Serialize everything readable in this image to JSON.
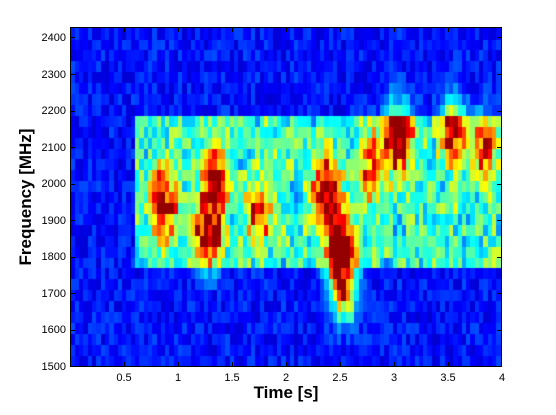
{
  "chart_data": {
    "type": "heatmap",
    "title": "",
    "xlabel": "Time [s]",
    "ylabel": "Frequency [MHz]",
    "xlim": [
      0,
      4
    ],
    "ylim": [
      1500,
      2430
    ],
    "x_ticks": [
      {
        "value": 0.5,
        "label": "0.5"
      },
      {
        "value": 1,
        "label": "1"
      },
      {
        "value": 1.5,
        "label": "1.5"
      },
      {
        "value": 2,
        "label": "2"
      },
      {
        "value": 2.5,
        "label": "2.5"
      },
      {
        "value": 3,
        "label": "3"
      },
      {
        "value": 3.5,
        "label": "3.5"
      },
      {
        "value": 4,
        "label": "4"
      }
    ],
    "y_ticks": [
      {
        "value": 1500,
        "label": "1500"
      },
      {
        "value": 1600,
        "label": "1600"
      },
      {
        "value": 1700,
        "label": "1700"
      },
      {
        "value": 1800,
        "label": "1800"
      },
      {
        "value": 1900,
        "label": "1900"
      },
      {
        "value": 2000,
        "label": "2000"
      },
      {
        "value": 2100,
        "label": "2100"
      },
      {
        "value": 2200,
        "label": "2200"
      },
      {
        "value": 2300,
        "label": "2300"
      },
      {
        "value": 2400,
        "label": "2400"
      }
    ],
    "colormap": "jet",
    "grid": false,
    "time_bins": 100,
    "freq_bins": 31,
    "hotspots": [
      {
        "t": 0.87,
        "f": 1950,
        "intensity": 0.7
      },
      {
        "t": 1.28,
        "f": 1870,
        "intensity": 0.85
      },
      {
        "t": 1.35,
        "f": 2020,
        "intensity": 0.6
      },
      {
        "t": 1.75,
        "f": 1920,
        "intensity": 0.5
      },
      {
        "t": 2.38,
        "f": 1980,
        "intensity": 0.8
      },
      {
        "t": 2.5,
        "f": 1820,
        "intensity": 0.95
      },
      {
        "t": 2.55,
        "f": 1720,
        "intensity": 0.7
      },
      {
        "t": 3.05,
        "f": 2130,
        "intensity": 0.9
      },
      {
        "t": 3.55,
        "f": 2150,
        "intensity": 0.6
      },
      {
        "t": 3.85,
        "f": 2100,
        "intensity": 0.55
      },
      {
        "t": 2.8,
        "f": 2050,
        "intensity": 0.5
      }
    ],
    "band": {
      "f_low": 1780,
      "f_high": 2200,
      "intensity": 0.35
    }
  }
}
